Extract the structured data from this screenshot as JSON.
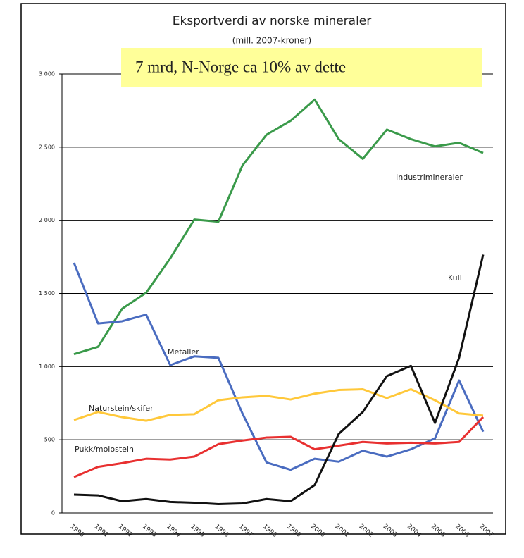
{
  "chart_data": {
    "type": "line",
    "title": "Eksportverdi av norske mineraler",
    "subtitle": "(mill. 2007-kroner)",
    "annotation": "7 mrd, N-Norge ca 10% av dette",
    "categories": [
      "1990",
      "1991",
      "1992",
      "1993",
      "1994",
      "1995",
      "1996",
      "1997",
      "1998",
      "1999",
      "2000",
      "2001",
      "2002",
      "2003",
      "2004",
      "2005",
      "2006",
      "2007"
    ],
    "series": [
      {
        "name": "Industrimineraler",
        "color": "#3a9a4a",
        "values": [
          1085,
          1135,
          1395,
          1505,
          1740,
          2005,
          1990,
          2375,
          2585,
          2680,
          2825,
          2555,
          2420,
          2620,
          2555,
          2505,
          2530,
          2460
        ]
      },
      {
        "name": "Metaller",
        "color": "#4a6cc0",
        "values": [
          1710,
          1295,
          1310,
          1355,
          1010,
          1070,
          1060,
          680,
          345,
          295,
          370,
          350,
          425,
          385,
          435,
          510,
          905,
          555
        ]
      },
      {
        "name": "Naturstein/skifer",
        "color": "#ffc83a",
        "values": [
          635,
          690,
          655,
          630,
          670,
          675,
          770,
          790,
          800,
          775,
          815,
          840,
          845,
          785,
          845,
          770,
          680,
          665
        ]
      },
      {
        "name": "Pukk/molostein",
        "color": "#e83030",
        "values": [
          245,
          315,
          340,
          370,
          365,
          385,
          470,
          495,
          515,
          520,
          435,
          460,
          485,
          475,
          480,
          475,
          485,
          655
        ]
      },
      {
        "name": "Kull",
        "color": "#111111",
        "values": [
          125,
          120,
          80,
          95,
          75,
          70,
          60,
          65,
          95,
          80,
          190,
          540,
          690,
          935,
          1005,
          615,
          1060,
          1765
        ]
      }
    ],
    "ylim": [
      0,
      3000
    ],
    "yticks": [
      0,
      500,
      {
        "value": 1000,
        "label": "1 000"
      },
      {
        "value": 1500,
        "label": "1 500"
      },
      {
        "value": 2000,
        "label": "2 000"
      },
      {
        "value": 2500,
        "label": "2 500"
      },
      {
        "value": 3000,
        "label": "3 000"
      }
    ],
    "grid": true
  }
}
